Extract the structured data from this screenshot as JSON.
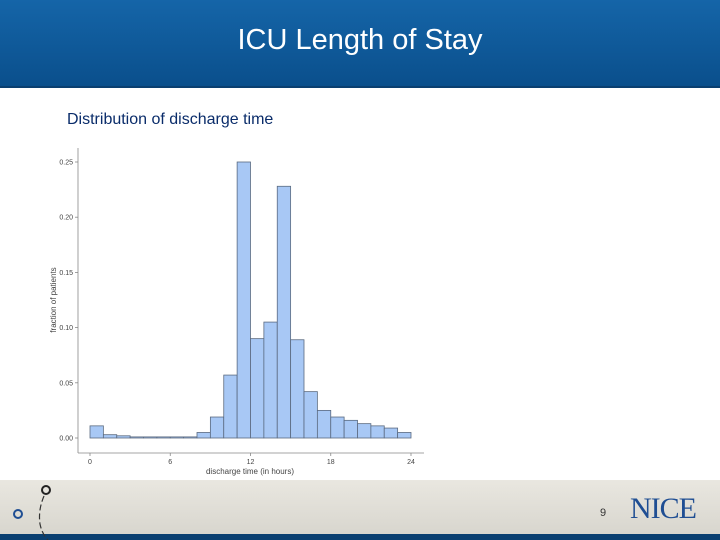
{
  "slide": {
    "title": "ICU Length of Stay",
    "subtitle": "Distribution of discharge time",
    "page_number": "9",
    "logo_text": "NICE"
  },
  "colors": {
    "title_bar": "#0a4f8c",
    "bar_fill": "#a8c8f5",
    "bar_stroke": "#5a6a80"
  },
  "icons": [
    "decorative-loop-icon"
  ],
  "chart_data": {
    "type": "bar",
    "title": "",
    "xlabel": "discharge time (in hours)",
    "ylabel": "fraction of patients",
    "xlim": [
      -1,
      25
    ],
    "ylim": [
      0,
      0.25
    ],
    "xticks": [
      {
        "value": 0,
        "label": "0"
      },
      {
        "value": 6,
        "label": "6"
      },
      {
        "value": 12,
        "label": "12"
      },
      {
        "value": 18,
        "label": "18"
      },
      {
        "value": 24,
        "label": "24"
      }
    ],
    "yticks": [
      {
        "value": 0,
        "label": "0.00"
      },
      {
        "value": 0.05,
        "label": "0.05"
      },
      {
        "value": 0.1,
        "label": "0.10"
      },
      {
        "value": 0.15,
        "label": "0.15"
      },
      {
        "value": 0.2,
        "label": "0.20"
      },
      {
        "value": 0.25,
        "label": "0.25"
      }
    ],
    "bin_width": 1,
    "bin_starts": [
      0,
      1,
      2,
      3,
      4,
      5,
      6,
      7,
      8,
      9,
      10,
      11,
      12,
      13,
      14,
      15,
      16,
      17,
      18,
      19,
      20,
      21,
      22,
      23
    ],
    "values": [
      0.011,
      0.003,
      0.002,
      0.001,
      0.001,
      0.001,
      0.001,
      0.001,
      0.005,
      0.019,
      0.057,
      0.25,
      0.09,
      0.105,
      0.228,
      0.089,
      0.042,
      0.025,
      0.019,
      0.016,
      0.013,
      0.011,
      0.009,
      0.005
    ],
    "grid": false,
    "legend": "none"
  }
}
